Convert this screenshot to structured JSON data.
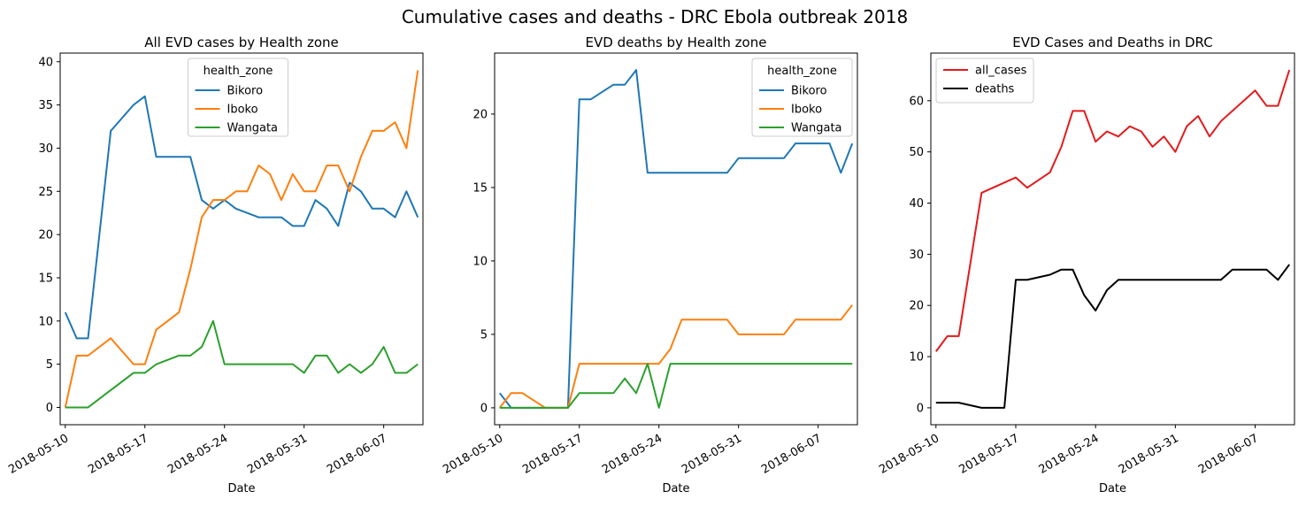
{
  "figure": {
    "suptitle": "Cumulative cases and deaths - DRC Ebola outbreak 2018"
  },
  "chart_data": [
    {
      "type": "line",
      "title": "All EVD cases by Health zone",
      "xlabel": "Date",
      "ylabel": "",
      "x_type": "date",
      "ylim": [
        -2,
        41
      ],
      "yticks": [
        0,
        5,
        10,
        15,
        20,
        25,
        30,
        35,
        40
      ],
      "xticks": [
        "2018-05-10",
        "2018-05-17",
        "2018-05-24",
        "2018-05-31",
        "2018-06-07"
      ],
      "legend": {
        "title": "health_zone",
        "position": "upper center"
      },
      "series": [
        {
          "name": "Bikoro",
          "color": "#1f77b4",
          "x": [
            "2018-05-10",
            "2018-05-11",
            "2018-05-12",
            "2018-05-14",
            "2018-05-16",
            "2018-05-17",
            "2018-05-18",
            "2018-05-21",
            "2018-05-22",
            "2018-05-23",
            "2018-05-24",
            "2018-05-25",
            "2018-05-27",
            "2018-05-28",
            "2018-05-29",
            "2018-05-30",
            "2018-05-31",
            "2018-06-01",
            "2018-06-02",
            "2018-06-03",
            "2018-06-04",
            "2018-06-05",
            "2018-06-06",
            "2018-06-07",
            "2018-06-08",
            "2018-06-09",
            "2018-06-10"
          ],
          "y": [
            11,
            8,
            8,
            32,
            35,
            36,
            29,
            29,
            24,
            23,
            24,
            23,
            22,
            22,
            22,
            21,
            21,
            24,
            23,
            21,
            26,
            25,
            23,
            23,
            22,
            25,
            22
          ]
        },
        {
          "name": "Iboko",
          "color": "#ff7f0e",
          "x": [
            "2018-05-10",
            "2018-05-11",
            "2018-05-12",
            "2018-05-14",
            "2018-05-16",
            "2018-05-17",
            "2018-05-18",
            "2018-05-20",
            "2018-05-21",
            "2018-05-22",
            "2018-05-23",
            "2018-05-24",
            "2018-05-25",
            "2018-05-26",
            "2018-05-27",
            "2018-05-28",
            "2018-05-29",
            "2018-05-30",
            "2018-05-31",
            "2018-06-01",
            "2018-06-02",
            "2018-06-03",
            "2018-06-04",
            "2018-06-05",
            "2018-06-06",
            "2018-06-07",
            "2018-06-08",
            "2018-06-09",
            "2018-06-10"
          ],
          "y": [
            0,
            6,
            6,
            8,
            5,
            5,
            9,
            11,
            16,
            22,
            24,
            24,
            25,
            25,
            28,
            27,
            24,
            27,
            25,
            25,
            28,
            28,
            25,
            29,
            32,
            32,
            33,
            30,
            39
          ]
        },
        {
          "name": "Wangata",
          "color": "#2ca02c",
          "x": [
            "2018-05-10",
            "2018-05-12",
            "2018-05-16",
            "2018-05-17",
            "2018-05-18",
            "2018-05-20",
            "2018-05-21",
            "2018-05-22",
            "2018-05-23",
            "2018-05-24",
            "2018-05-30",
            "2018-05-31",
            "2018-06-01",
            "2018-06-02",
            "2018-06-03",
            "2018-06-04",
            "2018-06-05",
            "2018-06-06",
            "2018-06-07",
            "2018-06-08",
            "2018-06-09",
            "2018-06-10"
          ],
          "y": [
            0,
            0,
            4,
            4,
            5,
            6,
            6,
            7,
            10,
            5,
            5,
            4,
            6,
            6,
            4,
            5,
            4,
            5,
            7,
            4,
            4,
            5
          ]
        }
      ]
    },
    {
      "type": "line",
      "title": "EVD deaths by Health zone",
      "xlabel": "Date",
      "ylabel": "",
      "x_type": "date",
      "ylim": [
        -1.15,
        24.15
      ],
      "yticks": [
        0,
        5,
        10,
        15,
        20
      ],
      "xticks": [
        "2018-05-10",
        "2018-05-17",
        "2018-05-24",
        "2018-05-31",
        "2018-06-07"
      ],
      "legend": {
        "title": "health_zone",
        "position": "upper right"
      },
      "series": [
        {
          "name": "Bikoro",
          "color": "#1f77b4",
          "x": [
            "2018-05-10",
            "2018-05-11",
            "2018-05-16",
            "2018-05-17",
            "2018-05-18",
            "2018-05-20",
            "2018-05-21",
            "2018-05-22",
            "2018-05-23",
            "2018-05-30",
            "2018-05-31",
            "2018-06-04",
            "2018-06-05",
            "2018-06-08",
            "2018-06-09",
            "2018-06-10"
          ],
          "y": [
            1,
            0,
            0,
            21,
            21,
            22,
            22,
            23,
            16,
            16,
            17,
            17,
            18,
            18,
            16,
            18
          ]
        },
        {
          "name": "Iboko",
          "color": "#ff7f0e",
          "x": [
            "2018-05-10",
            "2018-05-11",
            "2018-05-12",
            "2018-05-14",
            "2018-05-16",
            "2018-05-17",
            "2018-05-24",
            "2018-05-25",
            "2018-05-26",
            "2018-05-30",
            "2018-05-31",
            "2018-06-04",
            "2018-06-05",
            "2018-06-09",
            "2018-06-10"
          ],
          "y": [
            0,
            1,
            1,
            0,
            0,
            3,
            3,
            4,
            6,
            6,
            5,
            5,
            6,
            6,
            7
          ]
        },
        {
          "name": "Wangata",
          "color": "#2ca02c",
          "x": [
            "2018-05-10",
            "2018-05-16",
            "2018-05-17",
            "2018-05-20",
            "2018-05-21",
            "2018-05-22",
            "2018-05-23",
            "2018-05-24",
            "2018-05-25",
            "2018-06-10"
          ],
          "y": [
            0,
            0,
            1,
            1,
            2,
            1,
            3,
            0,
            3,
            3
          ]
        }
      ]
    },
    {
      "type": "line",
      "title": "EVD Cases and Deaths in DRC",
      "xlabel": "Date",
      "ylabel": "",
      "x_type": "date",
      "ylim": [
        -3.3,
        69.3
      ],
      "yticks": [
        0,
        10,
        20,
        30,
        40,
        50,
        60
      ],
      "xticks": [
        "2018-05-10",
        "2018-05-17",
        "2018-05-24",
        "2018-05-31",
        "2018-06-07"
      ],
      "legend": {
        "title": "",
        "position": "upper left"
      },
      "series": [
        {
          "name": "all_cases",
          "color": "#e31a1c",
          "x": [
            "2018-05-10",
            "2018-05-11",
            "2018-05-12",
            "2018-05-14",
            "2018-05-17",
            "2018-05-18",
            "2018-05-20",
            "2018-05-21",
            "2018-05-22",
            "2018-05-23",
            "2018-05-24",
            "2018-05-25",
            "2018-05-26",
            "2018-05-27",
            "2018-05-28",
            "2018-05-29",
            "2018-05-30",
            "2018-05-31",
            "2018-06-01",
            "2018-06-02",
            "2018-06-03",
            "2018-06-04",
            "2018-06-07",
            "2018-06-08",
            "2018-06-09",
            "2018-06-10"
          ],
          "y": [
            11,
            14,
            14,
            42,
            45,
            43,
            46,
            51,
            58,
            58,
            52,
            54,
            53,
            55,
            54,
            51,
            53,
            50,
            55,
            57,
            53,
            56,
            62,
            59,
            59,
            66
          ]
        },
        {
          "name": "deaths",
          "color": "#000000",
          "x": [
            "2018-05-10",
            "2018-05-12",
            "2018-05-14",
            "2018-05-16",
            "2018-05-17",
            "2018-05-18",
            "2018-05-20",
            "2018-05-21",
            "2018-05-22",
            "2018-05-23",
            "2018-05-24",
            "2018-05-25",
            "2018-05-26",
            "2018-06-04",
            "2018-06-05",
            "2018-06-08",
            "2018-06-09",
            "2018-06-10"
          ],
          "y": [
            1,
            1,
            0,
            0,
            25,
            25,
            26,
            27,
            27,
            22,
            19,
            23,
            25,
            25,
            27,
            27,
            25,
            28
          ]
        }
      ]
    }
  ]
}
